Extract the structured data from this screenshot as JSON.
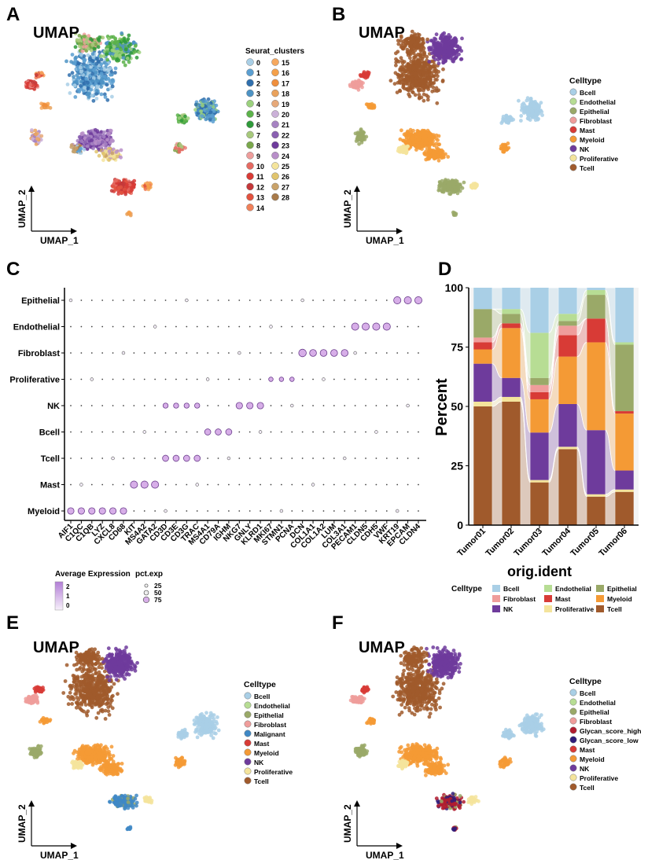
{
  "panel_letters": [
    "A",
    "B",
    "C",
    "D",
    "E",
    "F"
  ],
  "colors": {
    "Bcell": "#a9cfe6",
    "Endothelial": "#b7dd94",
    "Epithelial": "#9aa968",
    "Fibroblast": "#ef9d9b",
    "Malignant": "#3f88c5",
    "Mast": "#d83b36",
    "Myeloid": "#f49a35",
    "NK": "#6e3b9c",
    "Proliferative": "#f4e49c",
    "Tcell": "#a05a2c",
    "Glycan_score_high": "#b11c2f",
    "Glycan_score_low": "#2f1c7a"
  },
  "umaps": [
    {
      "id": "A",
      "title": "UMAP",
      "xlabel": "UMAP_1",
      "ylabel": "UMAP_2",
      "legend_title": "Seurat_clusters",
      "legend_col1": [
        "0",
        "1",
        "2",
        "3",
        "4",
        "5",
        "6",
        "7",
        "8",
        "9",
        "10",
        "11",
        "12",
        "13",
        "14"
      ],
      "legend_col2": [
        "15",
        "16",
        "17",
        "18",
        "19",
        "20",
        "21",
        "22",
        "23",
        "24",
        "25",
        "26",
        "27",
        "28"
      ],
      "cluster_colors": [
        "#a9cfe6",
        "#5b9fd1",
        "#2f6fad",
        "#4d93c4",
        "#9bd17d",
        "#5cb24a",
        "#2f9a3a",
        "#a7c97b",
        "#7aa84b",
        "#ee9d9b",
        "#e56a62",
        "#d83b36",
        "#c4383a",
        "#e2523f",
        "#f0805a",
        "#f6a85e",
        "#f4a04a",
        "#ef8f3d",
        "#e9a25c",
        "#e6a97a",
        "#cbb1d8",
        "#a683c2",
        "#8a60b1",
        "#6e3b9c",
        "#b88fc9",
        "#f4e49c",
        "#e0c46e",
        "#c9a26a",
        "#a87a4a"
      ]
    },
    {
      "id": "B",
      "title": "UMAP",
      "xlabel": "UMAP_1",
      "ylabel": "UMAP_2",
      "legend_title": "Celltype",
      "legend": [
        "Bcell",
        "Endothelial",
        "Epithelial",
        "Fibroblast",
        "Mast",
        "Myeloid",
        "NK",
        "Proliferative",
        "Tcell"
      ]
    },
    {
      "id": "E",
      "title": "UMAP",
      "xlabel": "UMAP_1",
      "ylabel": "UMAP_2",
      "legend_title": "Celltype",
      "legend": [
        "Bcell",
        "Endothelial",
        "Epithelial",
        "Fibroblast",
        "Malignant",
        "Mast",
        "Myeloid",
        "NK",
        "Proliferative",
        "Tcell"
      ]
    },
    {
      "id": "F",
      "title": "UMAP",
      "xlabel": "UMAP_1",
      "ylabel": "UMAP_2",
      "legend_title": "Celltype",
      "legend": [
        "Bcell",
        "Endothelial",
        "Epithelial",
        "Fibroblast",
        "Glycan_score_high",
        "Glycan_score_low",
        "Mast",
        "Myeloid",
        "NK",
        "Proliferative",
        "Tcell"
      ]
    }
  ],
  "chart_data": [
    {
      "id": "C",
      "type": "scatter",
      "subtype": "dotplot",
      "xlabel": "",
      "ylabel": "",
      "rows": [
        "Epithelial",
        "Endothelial",
        "Fibroblast",
        "Proliferative",
        "NK",
        "Bcell",
        "Tcell",
        "Mast",
        "Myeloid"
      ],
      "genes": [
        "AIF1",
        "C1QC",
        "C1QB",
        "LYZ",
        "CXCL8",
        "CD68",
        "KIT",
        "MS4A2",
        "GATA2",
        "CD3D",
        "CD3E",
        "CD3G",
        "TRAC",
        "MS4A1",
        "CD79A",
        "IGHM",
        "NKG7",
        "GNLY",
        "KLRD1",
        "MKI67",
        "STMN1",
        "PCNA",
        "DCN",
        "COL1A1",
        "COL1A2",
        "LUM",
        "COL3A1",
        "PECAM1",
        "CLDN5",
        "CDH5",
        "VWF",
        "KRT19",
        "EPCAM",
        "CLDN4"
      ],
      "marker_groups": [
        {
          "row": "Myeloid",
          "genes": [
            0,
            1,
            2,
            3,
            4,
            5
          ],
          "pct": 60
        },
        {
          "row": "Mast",
          "genes": [
            6,
            7,
            8
          ],
          "pct": 70
        },
        {
          "row": "Tcell",
          "genes": [
            9,
            10,
            11,
            12
          ],
          "pct": 55
        },
        {
          "row": "NK",
          "genes": [
            9,
            10,
            11,
            12
          ],
          "pct": 40
        },
        {
          "row": "NK",
          "genes": [
            16,
            17,
            18
          ],
          "pct": 60
        },
        {
          "row": "Bcell",
          "genes": [
            13,
            14,
            15
          ],
          "pct": 55
        },
        {
          "row": "Proliferative",
          "genes": [
            19,
            20,
            21
          ],
          "pct": 30
        },
        {
          "row": "Fibroblast",
          "genes": [
            22
          ],
          "pct": 75
        },
        {
          "row": "Fibroblast",
          "genes": [
            23,
            24,
            25,
            26
          ],
          "pct": 65
        },
        {
          "row": "Endothelial",
          "genes": [
            27,
            28,
            29,
            30
          ],
          "pct": 70
        },
        {
          "row": "Epithelial",
          "genes": [
            31,
            32,
            33
          ],
          "pct": 70
        }
      ],
      "color_legend": {
        "title": "Average Expression",
        "ticks": [
          "2",
          "1",
          "0"
        ],
        "range": [
          -0.5,
          2.5
        ]
      },
      "size_legend": {
        "title": "pct.exp",
        "values": [
          25,
          50,
          75
        ],
        "labels": [
          "25",
          "50",
          "75"
        ]
      }
    },
    {
      "id": "D",
      "type": "bar",
      "subtype": "stacked-percent alluvial",
      "title": "",
      "xlabel": "orig.ident",
      "ylabel": "Percent",
      "categories": [
        "Tumor01",
        "Tumor02",
        "Tumor03",
        "Tumor04",
        "Tumor05",
        "Tumor06"
      ],
      "yticks": [
        "0",
        "25",
        "50",
        "75",
        "100"
      ],
      "ylim": [
        0,
        100
      ],
      "stack_order_bottom_to_top": [
        "Tcell",
        "Proliferative",
        "NK",
        "Myeloid",
        "Mast",
        "Fibroblast",
        "Epithelial",
        "Endothelial",
        "Bcell"
      ],
      "series": [
        {
          "name": "Tcell",
          "values": [
            50,
            52,
            18,
            32,
            12,
            14
          ]
        },
        {
          "name": "Proliferative",
          "values": [
            2,
            2,
            1,
            1,
            1,
            1
          ]
        },
        {
          "name": "NK",
          "values": [
            16,
            8,
            20,
            18,
            27,
            8
          ]
        },
        {
          "name": "Myeloid",
          "values": [
            6,
            21,
            14,
            20,
            37,
            24
          ]
        },
        {
          "name": "Mast",
          "values": [
            3,
            2,
            3,
            9,
            10,
            1
          ]
        },
        {
          "name": "Fibroblast",
          "values": [
            2,
            0,
            3,
            4,
            0,
            0
          ]
        },
        {
          "name": "Epithelial",
          "values": [
            12,
            4,
            3,
            2,
            10,
            28
          ]
        },
        {
          "name": "Endothelial",
          "values": [
            0,
            2,
            19,
            3,
            2,
            1
          ]
        },
        {
          "name": "Bcell",
          "values": [
            9,
            9,
            19,
            11,
            1,
            23
          ]
        }
      ],
      "legend": {
        "title": "Celltype",
        "entries": [
          "Bcell",
          "Fibroblast",
          "NK",
          "Endothelial",
          "Mast",
          "Proliferative",
          "Epithelial",
          "Myeloid",
          "Tcell"
        ]
      }
    }
  ]
}
